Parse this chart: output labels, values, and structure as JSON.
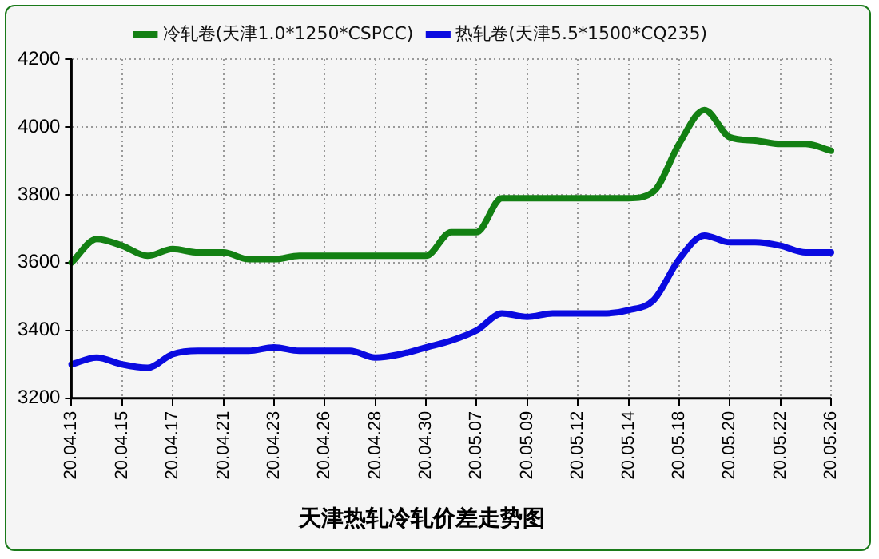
{
  "chart_data": {
    "type": "line",
    "title": "天津热轧冷轧价差走势图",
    "categories": [
      "20.04.13",
      null,
      "20.04.15",
      null,
      "20.04.17",
      null,
      "20.04.21",
      null,
      "20.04.23",
      null,
      "20.04.26",
      null,
      "20.04.28",
      null,
      "20.04.30",
      null,
      "20.05.07",
      null,
      "20.05.09",
      null,
      "20.05.12",
      null,
      "20.05.14",
      null,
      "20.05.18",
      null,
      "20.05.20",
      null,
      "20.05.22",
      null,
      "20.05.26"
    ],
    "series": [
      {
        "name": "冷轧卷(天津1.0*1250*CSPCC)",
        "color": "#138013",
        "values": [
          3600,
          3670,
          3650,
          3620,
          3640,
          3630,
          3630,
          3610,
          3610,
          3620,
          3620,
          3620,
          3620,
          3620,
          3620,
          3690,
          3690,
          3790,
          3790,
          3790,
          3790,
          3790,
          3790,
          3810,
          3950,
          4050,
          3970,
          3960,
          3950,
          3950,
          3930
        ]
      },
      {
        "name": "热轧卷(天津5.5*1500*CQ235)",
        "color": "#0a0ae0",
        "values": [
          3300,
          3320,
          3300,
          3290,
          3330,
          3340,
          3340,
          3340,
          3350,
          3340,
          3340,
          3340,
          3320,
          3330,
          3350,
          3370,
          3400,
          3450,
          3440,
          3450,
          3450,
          3450,
          3460,
          3490,
          3610,
          3680,
          3660,
          3660,
          3650,
          3630,
          3630
        ]
      }
    ],
    "ylim": [
      3200,
      4200
    ],
    "yticks": [
      3200,
      3400,
      3600,
      3800,
      4000,
      4200
    ],
    "grid": true,
    "legend": "top",
    "marker": "none",
    "line_style": "solid"
  }
}
